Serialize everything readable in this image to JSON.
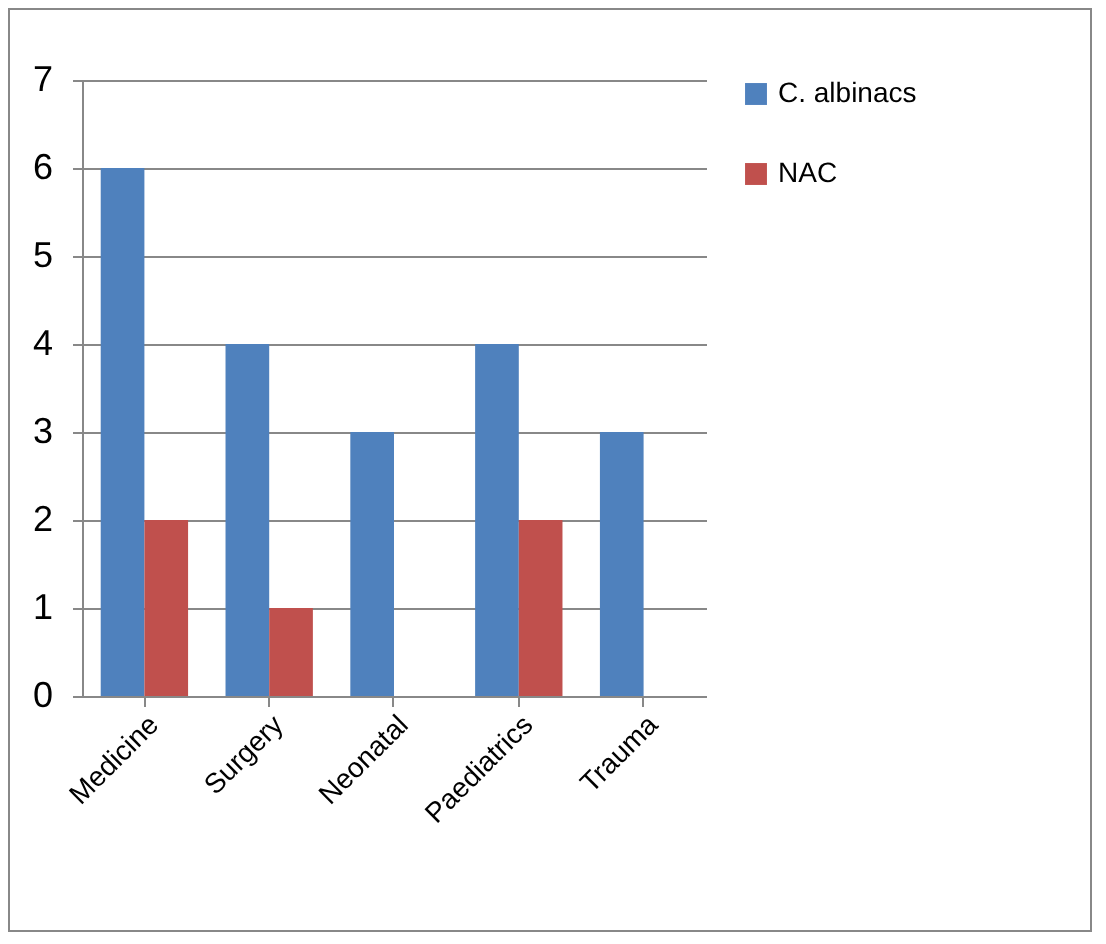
{
  "chart_data": {
    "type": "bar",
    "categories": [
      "Medicine",
      "Surgery",
      "Neonatal",
      "Paediatrics",
      "Trauma"
    ],
    "series": [
      {
        "name": "C. albinacs",
        "color": "#4f81bd",
        "values": [
          6,
          4,
          3,
          4,
          3
        ]
      },
      {
        "name": "NAC",
        "color": "#c0504d",
        "values": [
          2,
          1,
          0,
          2,
          0
        ]
      }
    ],
    "ylim": [
      0,
      7
    ],
    "yticks": [
      0,
      1,
      2,
      3,
      4,
      5,
      6,
      7
    ],
    "grid": "y",
    "legend": "right"
  }
}
